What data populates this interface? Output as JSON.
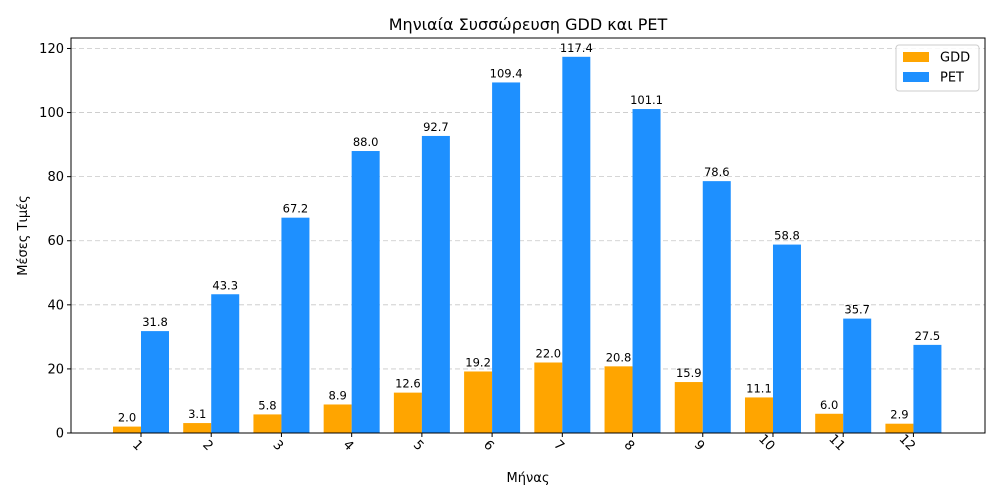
{
  "chart_data": {
    "type": "bar",
    "title": "Μηνιαία Συσσώρευση GDD και PET",
    "xlabel": "Μήνας",
    "ylabel": "Μέσες Τιμές",
    "categories": [
      "1",
      "2",
      "3",
      "4",
      "5",
      "6",
      "7",
      "8",
      "9",
      "10",
      "11",
      "12"
    ],
    "series": [
      {
        "name": "GDD",
        "color": "#ffa500",
        "values": [
          2.0,
          3.1,
          5.8,
          8.9,
          12.6,
          19.2,
          22.0,
          20.8,
          15.9,
          11.1,
          6.0,
          2.9
        ]
      },
      {
        "name": "PET",
        "color": "#1e90ff",
        "values": [
          31.8,
          43.3,
          67.2,
          88.0,
          92.7,
          109.4,
          117.4,
          101.1,
          78.6,
          58.8,
          35.7,
          27.5
        ]
      }
    ],
    "ylim": [
      0,
      123.27
    ],
    "yticks": [
      0,
      20,
      40,
      60,
      80,
      100,
      120
    ],
    "grid": "y-dashed",
    "legend_position": "top-right",
    "xtick_rotation": "45"
  }
}
